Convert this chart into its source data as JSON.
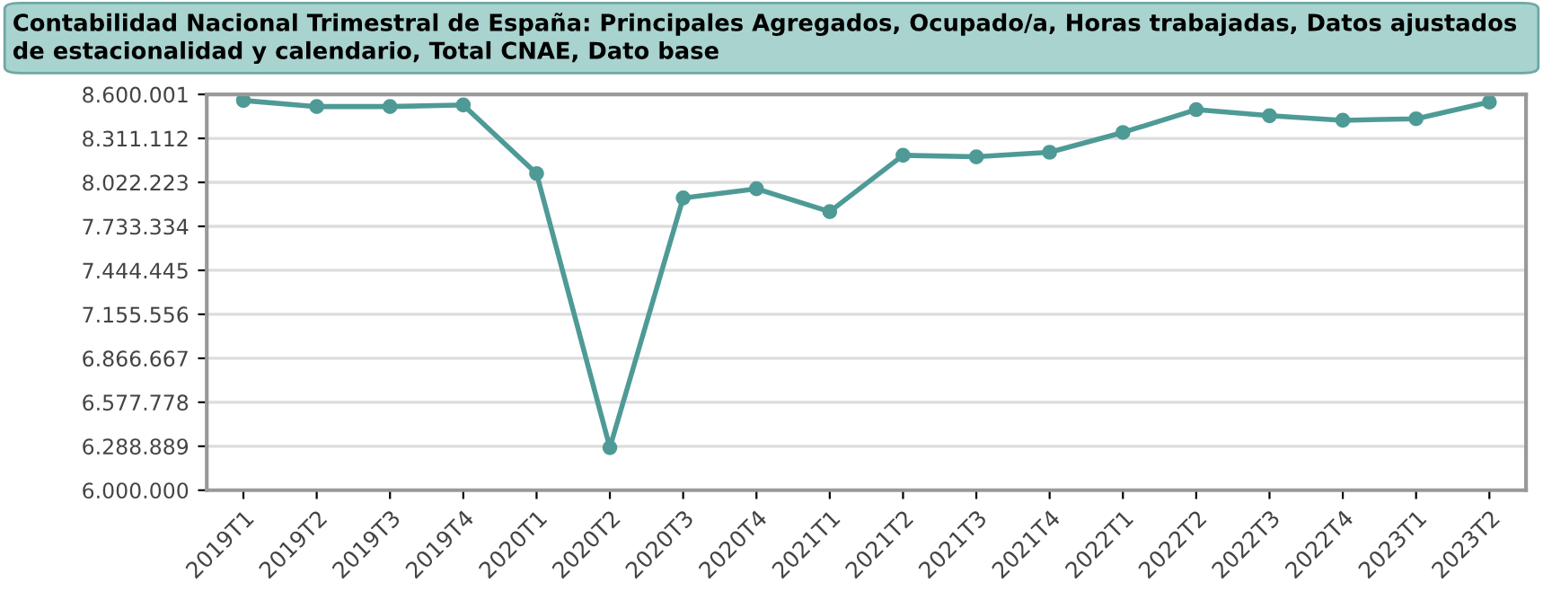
{
  "chart_data": {
    "type": "line",
    "title": "Contabilidad Nacional Trimestral de España: Principales Agregados, Ocupado/a, Horas trabajadas, Datos ajustados de estacionalidad y calendario, Total CNAE, Dato base",
    "categories": [
      "2019T1",
      "2019T2",
      "2019T3",
      "2019T4",
      "2020T1",
      "2020T2",
      "2020T3",
      "2020T4",
      "2021T1",
      "2021T2",
      "2021T3",
      "2021T4",
      "2022T1",
      "2022T2",
      "2022T3",
      "2022T4",
      "2023T1",
      "2023T2"
    ],
    "series": [
      {
        "color": "#4e9a96",
        "values": [
          8560000,
          8520000,
          8520000,
          8530000,
          8080000,
          6280000,
          7920000,
          7980000,
          7830000,
          8200000,
          8190000,
          8220000,
          8350000,
          8500000,
          8460000,
          8430000,
          8440000,
          8550000
        ]
      }
    ],
    "ylim": [
      6000000,
      8600001
    ],
    "yticks": [
      {
        "value": 6000000,
        "label": "6.000.000"
      },
      {
        "value": 6288889,
        "label": "6.288.889"
      },
      {
        "value": 6577778,
        "label": "6.577.778"
      },
      {
        "value": 6866667,
        "label": "6.866.667"
      },
      {
        "value": 7155556,
        "label": "7.155.556"
      },
      {
        "value": 7444445,
        "label": "7.444.445"
      },
      {
        "value": 7733334,
        "label": "7.733.334"
      },
      {
        "value": 8022223,
        "label": "8.022.223"
      },
      {
        "value": 8311112,
        "label": "8.311.112"
      },
      {
        "value": 8600001,
        "label": "8.600.001"
      }
    ],
    "grid": "y",
    "marker": "circle",
    "line_style": "solid"
  }
}
